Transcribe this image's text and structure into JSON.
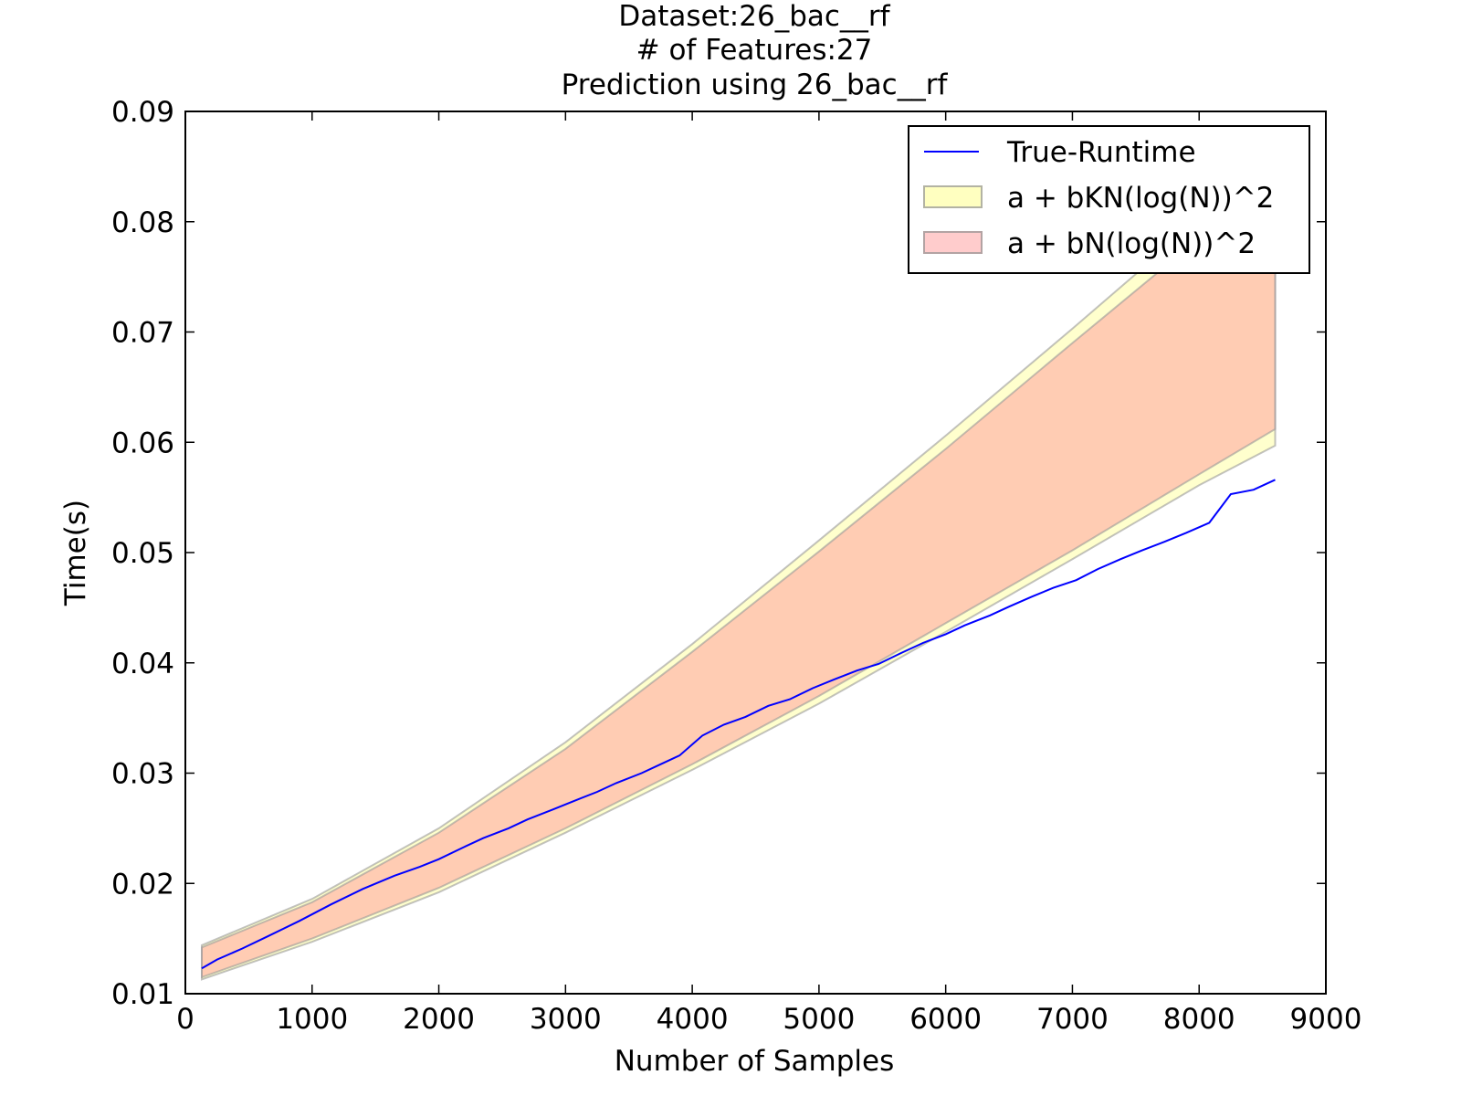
{
  "chart_data": {
    "type": "area",
    "title_lines": [
      "Dataset:26_bac__rf",
      "# of Features:27",
      "Prediction using 26_bac__rf"
    ],
    "xlabel": "Number of Samples",
    "ylabel": "Time(s)",
    "xlim": [
      0,
      9000
    ],
    "ylim": [
      0.01,
      0.09
    ],
    "xticks": [
      0,
      1000,
      2000,
      3000,
      4000,
      5000,
      6000,
      7000,
      8000,
      9000
    ],
    "xtick_labels": [
      "0",
      "1000",
      "2000",
      "3000",
      "4000",
      "5000",
      "6000",
      "7000",
      "8000",
      "9000"
    ],
    "yticks": [
      0.01,
      0.02,
      0.03,
      0.04,
      0.05,
      0.06,
      0.07,
      0.08,
      0.09
    ],
    "ytick_labels": [
      "0.01",
      "0.02",
      "0.03",
      "0.04",
      "0.05",
      "0.06",
      "0.07",
      "0.08",
      "0.09"
    ],
    "grid": false,
    "legend_position": "top-right",
    "series": [
      {
        "name": "True-Runtime",
        "kind": "line",
        "color": "#0000ff",
        "x": [
          130,
          250,
          450,
          650,
          900,
          1150,
          1400,
          1650,
          1850,
          2000,
          2200,
          2350,
          2550,
          2700,
          2900,
          3050,
          3250,
          3400,
          3600,
          3750,
          3900,
          4080,
          4250,
          4420,
          4600,
          4770,
          4950,
          5120,
          5300,
          5470,
          5650,
          5820,
          6000,
          6150,
          6350,
          6500,
          6680,
          6850,
          7030,
          7200,
          7380,
          7550,
          7730,
          7900,
          8080,
          8250,
          8430,
          8600
        ],
        "y": [
          0.0123,
          0.0131,
          0.0141,
          0.0152,
          0.0166,
          0.0181,
          0.0195,
          0.0207,
          0.0215,
          0.0222,
          0.0233,
          0.0241,
          0.025,
          0.0258,
          0.0267,
          0.0274,
          0.0283,
          0.0291,
          0.03,
          0.0308,
          0.0316,
          0.0334,
          0.0344,
          0.0351,
          0.0361,
          0.0367,
          0.0377,
          0.0385,
          0.0393,
          0.0399,
          0.0409,
          0.0418,
          0.0426,
          0.0434,
          0.0443,
          0.0451,
          0.046,
          0.0468,
          0.0475,
          0.0485,
          0.0494,
          0.0502,
          0.051,
          0.0518,
          0.0527,
          0.0553,
          0.0557,
          0.0566
        ]
      },
      {
        "name": "a + bKN(log(N))^2",
        "kind": "band",
        "color": "#ffffc0",
        "x": [
          130,
          1000,
          2000,
          3000,
          4000,
          5000,
          6000,
          7000,
          8000,
          8600
        ],
        "y_upper": [
          0.0144,
          0.0186,
          0.025,
          0.0328,
          0.0417,
          0.0511,
          0.0606,
          0.0703,
          0.0802,
          0.0862
        ],
        "y_lower": [
          0.0113,
          0.0147,
          0.0192,
          0.0246,
          0.0303,
          0.0363,
          0.0428,
          0.0494,
          0.0561,
          0.0597
        ]
      },
      {
        "name": "a + bN(log(N))^2",
        "kind": "band",
        "color": "#ff9999",
        "x": [
          130,
          1000,
          2000,
          3000,
          4000,
          5000,
          6000,
          7000,
          8000,
          8600
        ],
        "y_upper": [
          0.0142,
          0.0183,
          0.0246,
          0.0322,
          0.041,
          0.0501,
          0.0594,
          0.069,
          0.0785,
          0.0845
        ],
        "y_lower": [
          0.0115,
          0.015,
          0.0196,
          0.025,
          0.0308,
          0.037,
          0.0436,
          0.0502,
          0.0571,
          0.0612
        ]
      }
    ]
  }
}
